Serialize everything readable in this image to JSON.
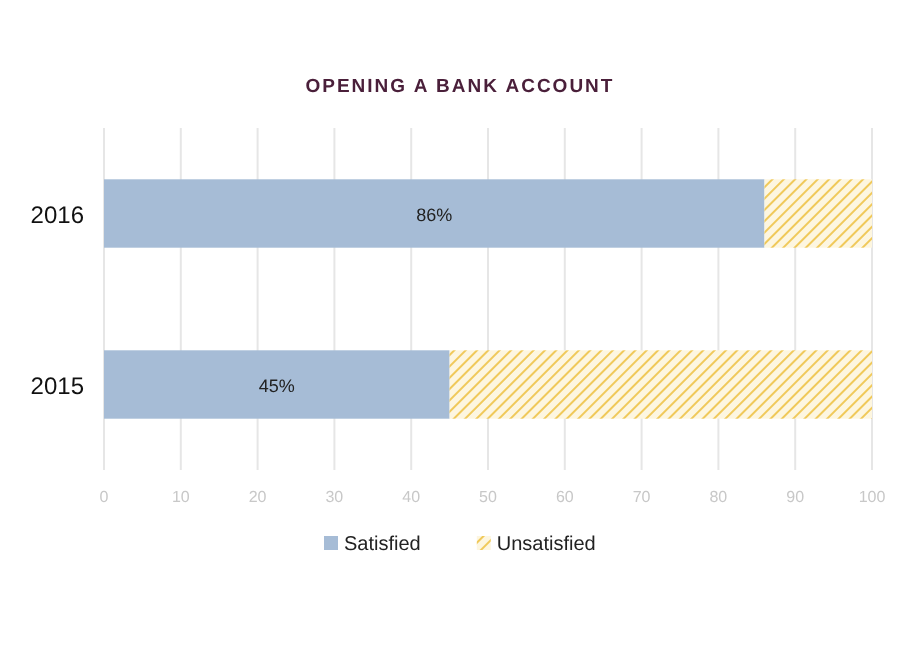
{
  "chart_data": {
    "type": "bar",
    "title": "OPENING A BANK ACCOUNT",
    "orientation": "horizontal",
    "stacked": true,
    "categories": [
      "2016",
      "2015"
    ],
    "series": [
      {
        "name": "Satisfied",
        "color": "#a6bcd6",
        "values": [
          86,
          45
        ],
        "value_labels": [
          "86%",
          "45%"
        ]
      },
      {
        "name": "Unsatisfied",
        "color": "#f0c95a",
        "values": [
          14,
          55
        ]
      }
    ],
    "xlim": [
      0,
      100
    ],
    "xticks": [
      0,
      10,
      20,
      30,
      40,
      50,
      60,
      70,
      80,
      90,
      100
    ],
    "grid": "x",
    "legend": "bottom"
  }
}
